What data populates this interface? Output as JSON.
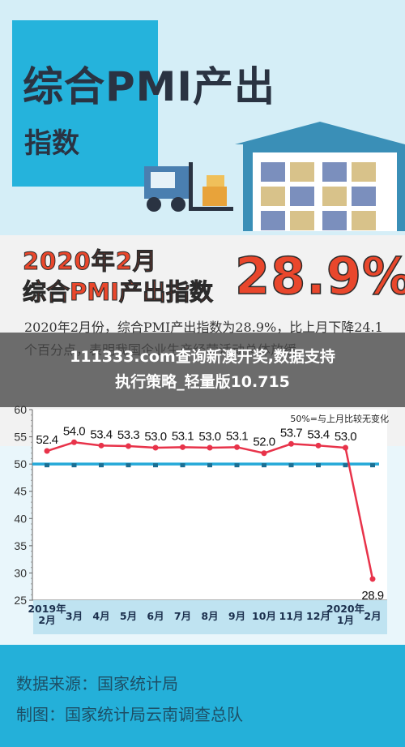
{
  "hero": {
    "title": "综合PMI产出",
    "subtitle": "指数"
  },
  "kpi": {
    "heading_date": "2020年2月",
    "heading_name": "综合PMI产出指数",
    "big_value": "28.9%",
    "description": "2020年2月份，综合PMI产出指数为28.9%，比上月下降24.1个百分点，表明我国企业生产经营活动总体放缓。"
  },
  "banner": {
    "line1": "111333.com查询新澳开奖,数据支持",
    "line2": "执行策略_轻量版10.715"
  },
  "footer": {
    "source": "数据来源：国家统计局",
    "maker": "制图：国家统计局云南调查总队"
  },
  "colors": {
    "series": "#e8334a",
    "baseline": "#25a9d8",
    "accent": "#e9472c",
    "footer": "#24b0d9"
  },
  "chart_data": {
    "type": "line",
    "categories": [
      "2019年\n2月",
      "3月",
      "4月",
      "5月",
      "6月",
      "7月",
      "8月",
      "9月",
      "10月",
      "11月",
      "12月",
      "2020年\n1月",
      "2月"
    ],
    "series": [
      {
        "values": [
          52.4,
          54.0,
          53.4,
          53.3,
          53.0,
          53.1,
          53.0,
          53.1,
          52.0,
          53.7,
          53.4,
          53.0,
          28.9
        ]
      }
    ],
    "data_labels": [
      "52.4",
      "54.0",
      "53.4",
      "53.3",
      "53.0",
      "53.1",
      "53.0",
      "53.1",
      "52.0",
      "53.7",
      "53.4",
      "53.0",
      "28.9"
    ],
    "baseline": {
      "value": 50,
      "label": "50%=与上月比较无变化"
    },
    "y_ticks": [
      "60",
      "55",
      "50",
      "45",
      "40",
      "35",
      "30",
      "25"
    ],
    "ylim": [
      25,
      60
    ],
    "title": "",
    "xlabel": "",
    "ylabel": "",
    "grid": false
  }
}
